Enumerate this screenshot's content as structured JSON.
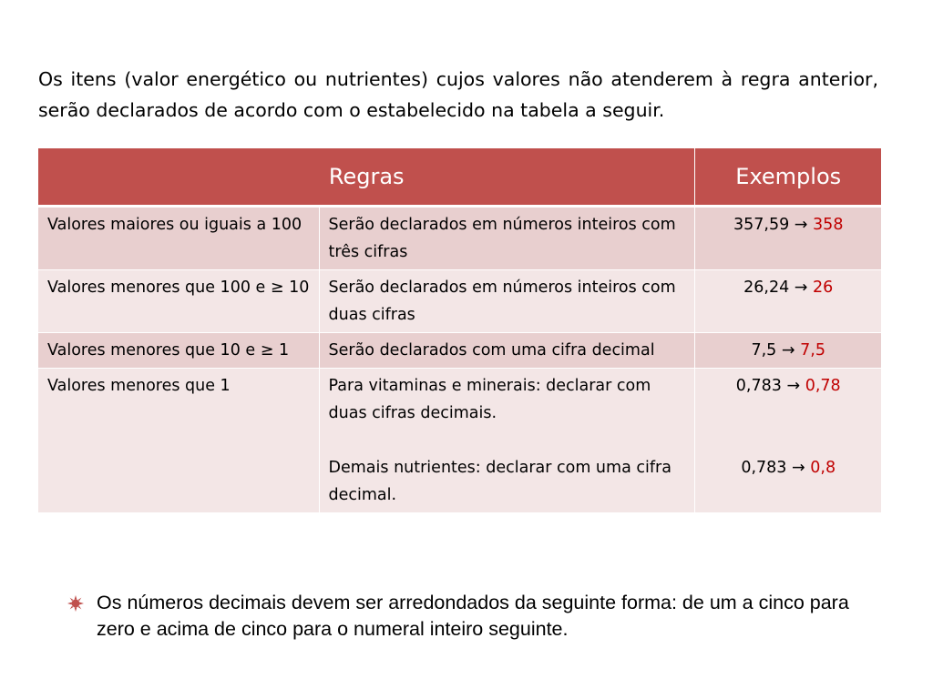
{
  "intro": "Os itens (valor energético ou nutrientes) cujos valores não atenderem à regra anterior, serão declarados de acordo com o estabelecido na tabela a seguir.",
  "table": {
    "headers": {
      "rules": "Regras",
      "examples": "Exemplos"
    },
    "arrow": "→",
    "rows": [
      {
        "condition": "Valores maiores ou iguais a 100",
        "rule": "Serão declarados em números inteiros com três cifras",
        "example_in": "357,59",
        "example_out": "358"
      },
      {
        "condition": "Valores menores que 100 e ≥ 10",
        "rule": "Serão declarados em números inteiros com duas cifras",
        "example_in": "26,24",
        "example_out": "26"
      },
      {
        "condition": "Valores menores que 10 e ≥ 1",
        "rule": "Serão declarados com uma cifra decimal",
        "example_in": "7,5",
        "example_out": "7,5"
      },
      {
        "condition": "Valores menores que 1",
        "rule": "Para vitaminas e minerais: declarar com duas cifras decimais.",
        "rule2": "Demais nutrientes: declarar com uma cifra decimal.",
        "example_in": "0,783",
        "example_out": "0,78",
        "example2_in": "0,783",
        "example2_out": "0,8"
      }
    ]
  },
  "bullet": "Os números decimais devem ser arredondados da seguinte forma: de um a cinco para zero e acima de cinco para o numeral inteiro seguinte.",
  "colors": {
    "header_bg": "#c0504d",
    "row_odd": "#e8cfcf",
    "row_even": "#f3e6e6",
    "highlight": "#c00000",
    "bullet_icon": "#c0504d"
  },
  "icons": {
    "bullet": "sunburst-bullet-icon"
  }
}
